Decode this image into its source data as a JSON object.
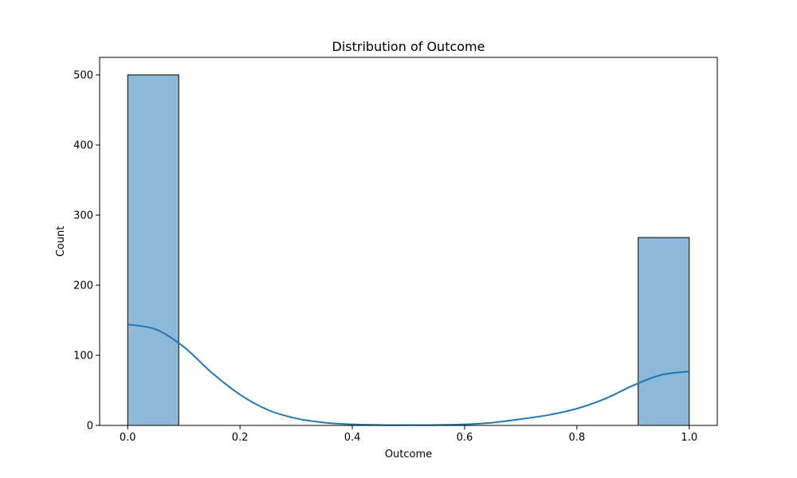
{
  "chart_data": {
    "type": "bar",
    "title": "Distribution of Outcome",
    "xlabel": "Outcome",
    "ylabel": "Count",
    "xlim": [
      -0.05,
      1.05
    ],
    "ylim": [
      0,
      525
    ],
    "x_ticks": [
      0.0,
      0.2,
      0.4,
      0.6,
      0.8,
      1.0
    ],
    "x_tick_labels": [
      "0.0",
      "0.2",
      "0.4",
      "0.6",
      "0.8",
      "1.0"
    ],
    "y_ticks": [
      0,
      100,
      200,
      300,
      400,
      500
    ],
    "y_tick_labels": [
      "0",
      "100",
      "200",
      "300",
      "400",
      "500"
    ],
    "grid": false,
    "bars": [
      {
        "x0": 0.0,
        "x1": 0.0909,
        "count": 500
      },
      {
        "x0": 0.0909,
        "x1": 0.1818,
        "count": 0
      },
      {
        "x0": 0.1818,
        "x1": 0.2727,
        "count": 0
      },
      {
        "x0": 0.2727,
        "x1": 0.3636,
        "count": 0
      },
      {
        "x0": 0.3636,
        "x1": 0.4545,
        "count": 0
      },
      {
        "x0": 0.4545,
        "x1": 0.5455,
        "count": 0
      },
      {
        "x0": 0.5455,
        "x1": 0.6364,
        "count": 0
      },
      {
        "x0": 0.6364,
        "x1": 0.7273,
        "count": 0
      },
      {
        "x0": 0.7273,
        "x1": 0.8182,
        "count": 0
      },
      {
        "x0": 0.8182,
        "x1": 0.9091,
        "count": 0
      },
      {
        "x0": 0.9091,
        "x1": 1.0,
        "count": 268
      }
    ],
    "kde": {
      "x": [
        0.0,
        0.05,
        0.1,
        0.15,
        0.2,
        0.25,
        0.3,
        0.35,
        0.4,
        0.45,
        0.5,
        0.55,
        0.6,
        0.65,
        0.7,
        0.75,
        0.8,
        0.85,
        0.9,
        0.95,
        1.0
      ],
      "y": [
        144,
        137,
        112,
        75,
        44,
        22,
        10,
        4,
        1.5,
        0.6,
        0.5,
        0.6,
        1.5,
        4,
        9,
        15,
        24,
        38,
        57,
        72,
        77
      ]
    },
    "colors": {
      "bar_fill": "#8db9da",
      "bar_edge": "#000000",
      "kde_line": "#1f77b4"
    }
  }
}
